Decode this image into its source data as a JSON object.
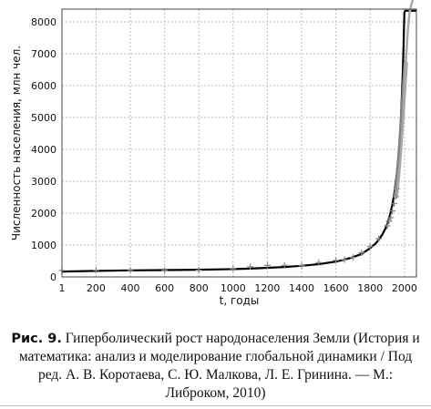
{
  "chart_data": {
    "type": "line",
    "xlabel": "t, годы",
    "ylabel": "Численность населения, млн чел.",
    "xlim": [
      1,
      2070
    ],
    "ylim": [
      0,
      8400
    ],
    "x_ticks": [
      1,
      200,
      400,
      600,
      800,
      1000,
      1200,
      1400,
      1600,
      1800,
      2000
    ],
    "y_ticks": [
      0,
      1000,
      2000,
      3000,
      4000,
      5000,
      6000,
      7000,
      8000
    ],
    "grid": true,
    "series": [
      {
        "kind": "model-curve",
        "color": "#000000",
        "x": [
          1,
          200,
          400,
          600,
          800,
          1000,
          1100,
          1200,
          1300,
          1400,
          1500,
          1600,
          1650,
          1700,
          1750,
          1800,
          1830,
          1850,
          1870,
          1890,
          1900,
          1910,
          1920,
          1930,
          1940,
          1950,
          1955,
          1960,
          1965,
          1970,
          1975,
          1980,
          1985,
          1990,
          1995,
          2000,
          2005,
          2008,
          2070
        ],
        "y": [
          170,
          190,
          205,
          215,
          225,
          245,
          260,
          285,
          310,
          350,
          400,
          480,
          540,
          620,
          720,
          900,
          1040,
          1160,
          1320,
          1530,
          1660,
          1830,
          2030,
          2280,
          2600,
          2980,
          3220,
          3480,
          3800,
          4150,
          4560,
          5050,
          5650,
          6400,
          7300,
          8300,
          8350,
          8350,
          8350
        ]
      },
      {
        "kind": "observations",
        "color": "#888888",
        "marker": "plus",
        "x": [
          1,
          200,
          400,
          600,
          800,
          1000,
          1100,
          1200,
          1300,
          1400,
          1500,
          1600,
          1650,
          1700,
          1750,
          1800,
          1850,
          1900,
          1910,
          1920,
          1930,
          1940,
          1950,
          1955
        ],
        "y": [
          200,
          210,
          205,
          205,
          210,
          260,
          320,
          360,
          360,
          350,
          450,
          520,
          540,
          610,
          760,
          950,
          1200,
          1600,
          1750,
          1860,
          2070,
          2300,
          2520,
          2760
        ]
      },
      {
        "kind": "observed-recent",
        "color": "#999999",
        "x": [
          1950,
          1960,
          1970,
          1980,
          1990,
          2000,
          2008
        ],
        "y": [
          2520,
          3020,
          3700,
          4440,
          5280,
          6080,
          6700
        ]
      },
      {
        "kind": "projection",
        "color": "#aaaaaa",
        "x": [
          2008,
          2020,
          2030,
          2040,
          2050,
          2060,
          2070
        ],
        "y": [
          6700,
          7750,
          8300,
          8550,
          8700,
          8800,
          8850
        ]
      }
    ]
  },
  "caption": {
    "figure_no": "Рис. 9.",
    "text": " Гиперболический рост народонаселения Земли (История и математика: анализ и моделирование глобальной динамики / Под ред. А. В. Коротаева, С. Ю. Малкова, Л. Е. Гринина. — М.: Либроком, 2010)"
  }
}
